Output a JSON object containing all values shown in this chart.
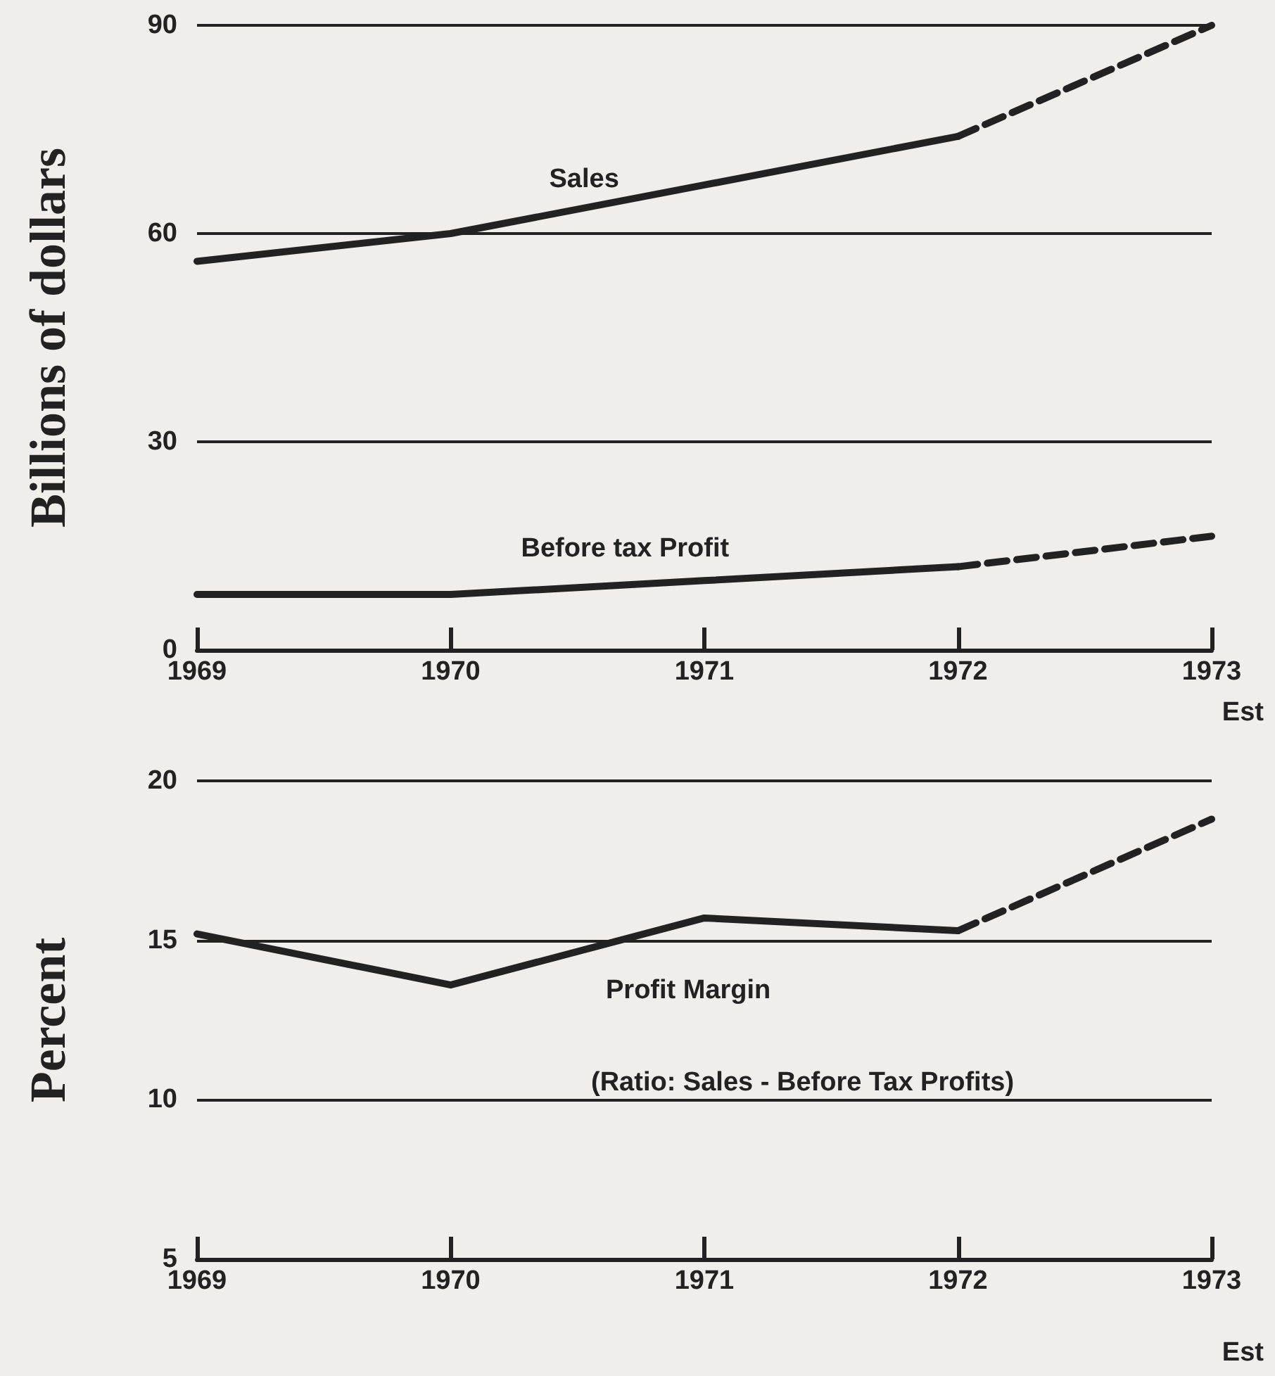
{
  "chart_data": [
    {
      "type": "line",
      "ylabel": "Billions of dollars",
      "categories": [
        "1969",
        "1970",
        "1971",
        "1972",
        "1973"
      ],
      "series": [
        {
          "name": "Sales",
          "color": "#222222",
          "line_style": "solid",
          "values": [
            56,
            60,
            67,
            74,
            null
          ]
        },
        {
          "color": "#222222",
          "line_style": "dashed",
          "values": [
            null,
            null,
            null,
            74,
            90
          ]
        },
        {
          "name": "Before tax Profit",
          "color": "#222222",
          "line_style": "solid",
          "values": [
            8,
            8,
            10,
            12,
            null
          ]
        },
        {
          "color": "#222222",
          "line_style": "dashed",
          "values": [
            null,
            null,
            null,
            12,
            16.4
          ]
        }
      ],
      "ylim": [
        0,
        90
      ],
      "yticks": [
        0,
        30,
        60,
        90
      ],
      "grid": "y",
      "legend": false,
      "marker": "none",
      "annotations": [
        "Est"
      ]
    },
    {
      "type": "line",
      "ylabel": "Percent",
      "categories": [
        "1969",
        "1970",
        "1971",
        "1972",
        "1973"
      ],
      "series": [
        {
          "name": "Profit Margin",
          "color": "#222222",
          "line_style": "solid",
          "values": [
            15.2,
            13.6,
            15.7,
            15.3,
            null
          ]
        },
        {
          "color": "#222222",
          "line_style": "dashed",
          "values": [
            null,
            null,
            null,
            15.3,
            18.8
          ]
        }
      ],
      "ylim": [
        5,
        20
      ],
      "yticks": [
        5,
        10,
        15,
        20
      ],
      "grid": "y",
      "legend": false,
      "marker": "none",
      "annotations": [
        "(Ratio: Sales - Before Tax Profits)",
        "Est"
      ]
    }
  ]
}
